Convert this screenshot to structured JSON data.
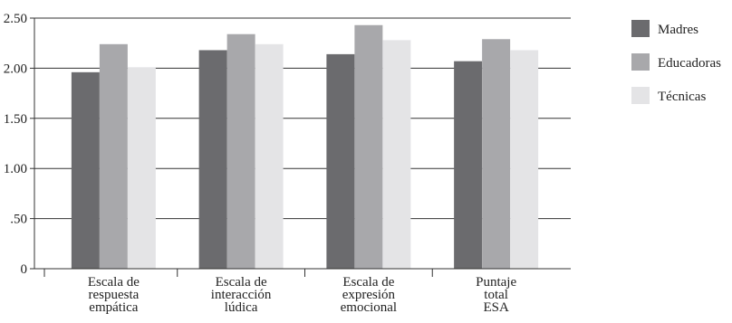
{
  "chart_data": {
    "type": "bar",
    "categories": [
      [
        "Escala de",
        "respuesta",
        "empática"
      ],
      [
        "Escala de",
        "interacción",
        "lúdica"
      ],
      [
        "Escala de",
        "expresión",
        "emocional"
      ],
      [
        "Puntaje",
        "total",
        "ESA"
      ]
    ],
    "series": [
      {
        "name": "Madres",
        "values": [
          1.96,
          2.18,
          2.14,
          2.07
        ],
        "color": "#6b6b6e"
      },
      {
        "name": "Educadoras",
        "values": [
          2.24,
          2.34,
          2.43,
          2.29
        ],
        "color": "#a8a8ab"
      },
      {
        "name": "Técnicas",
        "values": [
          2.01,
          2.24,
          2.28,
          2.18
        ],
        "color": "#e4e4e6"
      }
    ],
    "yticks": [
      "0",
      ".50",
      "1.00",
      "1.50",
      "2.00",
      "2.50"
    ],
    "ylim": [
      0,
      2.5
    ],
    "grid": true,
    "legend_position": "right"
  }
}
